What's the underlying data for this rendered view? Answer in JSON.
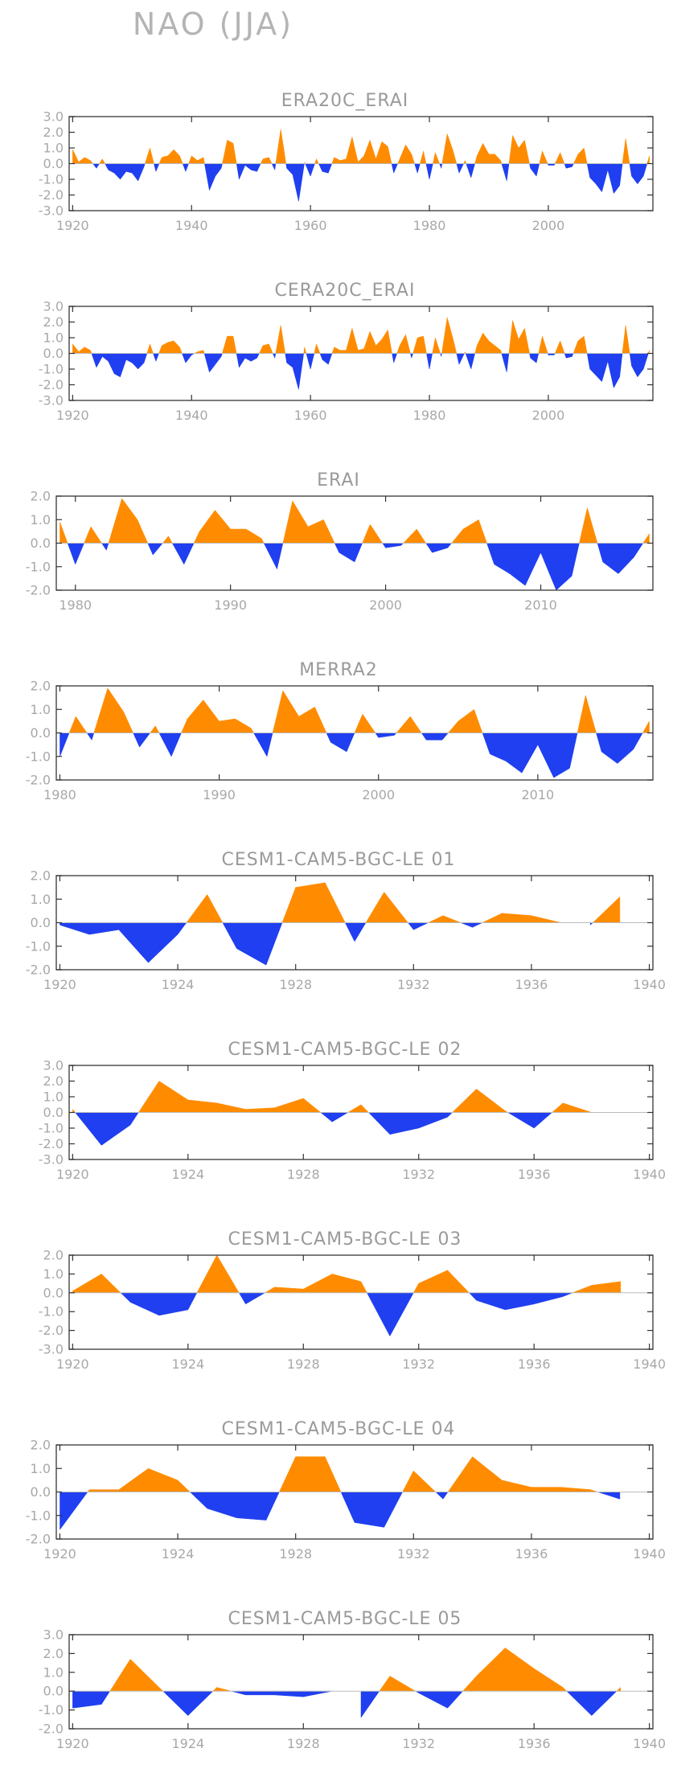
{
  "title": "NAO (JJA)",
  "colors": {
    "positive": "#ff8c00",
    "negative": "#1f3ff0",
    "axis_text": "#a8a8a8",
    "title_text": "#b4b4b4"
  },
  "chart_data": [
    {
      "type": "area",
      "title": "ERA20C_ERAI",
      "xlim": [
        1920,
        2017
      ],
      "ylim": [
        -3.0,
        3.0
      ],
      "y_ticks": [
        3.0,
        2.0,
        1.0,
        0.0,
        -1.0,
        -2.0,
        -3.0
      ],
      "y_tick_labels": [
        "3.0",
        "2.0",
        "1.0",
        "0.0",
        "-1.0",
        "-2.0",
        "-3.0"
      ],
      "x_ticks": [
        1920,
        1940,
        1960,
        1980,
        2000
      ],
      "x_tick_labels": [
        "1920",
        "1940",
        "1960",
        "1980",
        "2000"
      ],
      "x": [
        1920,
        1921,
        1922,
        1923,
        1924,
        1925,
        1926,
        1927,
        1928,
        1929,
        1930,
        1931,
        1932,
        1933,
        1934,
        1935,
        1936,
        1937,
        1938,
        1939,
        1940,
        1941,
        1942,
        1943,
        1944,
        1945,
        1946,
        1947,
        1948,
        1949,
        1950,
        1951,
        1952,
        1953,
        1954,
        1955,
        1956,
        1957,
        1958,
        1959,
        1960,
        1961,
        1962,
        1963,
        1964,
        1965,
        1966,
        1967,
        1968,
        1969,
        1970,
        1971,
        1972,
        1973,
        1974,
        1975,
        1976,
        1977,
        1978,
        1979,
        1980,
        1981,
        1982,
        1983,
        1984,
        1985,
        1986,
        1987,
        1988,
        1989,
        1990,
        1991,
        1992,
        1993,
        1994,
        1995,
        1996,
        1997,
        1998,
        1999,
        2000,
        2001,
        2002,
        2003,
        2004,
        2005,
        2006,
        2007,
        2008,
        2009,
        2010,
        2011,
        2012,
        2013,
        2014,
        2015,
        2016,
        2017
      ],
      "values": [
        0.9,
        0.1,
        0.4,
        0.2,
        -0.3,
        0.3,
        -0.4,
        -0.6,
        -1.0,
        -0.5,
        -0.6,
        -1.1,
        -0.2,
        1.0,
        -0.5,
        0.4,
        0.5,
        0.9,
        0.5,
        -0.5,
        0.5,
        0.2,
        0.4,
        -1.7,
        -0.8,
        -0.3,
        1.5,
        1.3,
        -1.0,
        -0.1,
        -0.4,
        -0.5,
        0.3,
        0.4,
        -0.4,
        2.2,
        -0.3,
        -0.7,
        -2.4,
        0.1,
        -0.8,
        0.3,
        -0.5,
        -0.6,
        0.4,
        0.2,
        0.3,
        1.7,
        0.1,
        0.5,
        1.5,
        0.3,
        1.4,
        1.1,
        -0.6,
        0.3,
        1.2,
        0.6,
        -0.6,
        0.8,
        -1.0,
        0.7,
        -0.3,
        1.9,
        0.8,
        -0.6,
        0.2,
        -0.9,
        0.5,
        1.3,
        0.6,
        0.6,
        0.2,
        -1.1,
        1.8,
        1.0,
        1.5,
        -0.3,
        -0.8,
        0.8,
        -0.1,
        -0.1,
        0.7,
        -0.3,
        -0.2,
        0.6,
        1.0,
        -0.9,
        -1.3,
        -1.8,
        -0.4,
        -1.9,
        -1.4,
        1.6,
        -0.8,
        -1.3,
        -0.8,
        0.5
      ]
    },
    {
      "type": "area",
      "title": "CERA20C_ERAI",
      "xlim": [
        1920,
        2017
      ],
      "ylim": [
        -3.0,
        3.0
      ],
      "y_ticks": [
        3.0,
        2.0,
        1.0,
        0.0,
        -1.0,
        -2.0,
        -3.0
      ],
      "y_tick_labels": [
        "3.0",
        "2.0",
        "1.0",
        "0.0",
        "-1.0",
        "-2.0",
        "-3.0"
      ],
      "x_ticks": [
        1920,
        1940,
        1960,
        1980,
        2000
      ],
      "x_tick_labels": [
        "1920",
        "1940",
        "1960",
        "1980",
        "2000"
      ],
      "x": [
        1920,
        1921,
        1922,
        1923,
        1924,
        1925,
        1926,
        1927,
        1928,
        1929,
        1930,
        1931,
        1932,
        1933,
        1934,
        1935,
        1936,
        1937,
        1938,
        1939,
        1940,
        1941,
        1942,
        1943,
        1944,
        1945,
        1946,
        1947,
        1948,
        1949,
        1950,
        1951,
        1952,
        1953,
        1954,
        1955,
        1956,
        1957,
        1958,
        1959,
        1960,
        1961,
        1962,
        1963,
        1964,
        1965,
        1966,
        1967,
        1968,
        1969,
        1970,
        1971,
        1972,
        1973,
        1974,
        1975,
        1976,
        1977,
        1978,
        1979,
        1980,
        1981,
        1982,
        1983,
        1984,
        1985,
        1986,
        1987,
        1988,
        1989,
        1990,
        1991,
        1992,
        1993,
        1994,
        1995,
        1996,
        1997,
        1998,
        1999,
        2000,
        2001,
        2002,
        2003,
        2004,
        2005,
        2006,
        2007,
        2008,
        2009,
        2010,
        2011,
        2012,
        2013,
        2014,
        2015,
        2016,
        2017
      ],
      "values": [
        0.6,
        0.1,
        0.4,
        0.2,
        -0.9,
        -0.2,
        -0.5,
        -1.3,
        -1.5,
        -0.4,
        -0.6,
        -1.0,
        -0.6,
        0.6,
        -0.5,
        0.5,
        0.7,
        0.8,
        0.4,
        -0.6,
        -0.1,
        0.1,
        0.2,
        -1.2,
        -0.7,
        -0.2,
        1.1,
        1.1,
        -0.9,
        -0.3,
        -0.5,
        -0.3,
        0.5,
        0.6,
        -0.3,
        1.8,
        -0.6,
        -0.9,
        -2.3,
        0.4,
        -1.0,
        0.6,
        -0.4,
        -0.7,
        0.4,
        0.2,
        0.2,
        1.6,
        0.2,
        0.3,
        1.4,
        0.5,
        0.9,
        1.5,
        -0.6,
        0.5,
        1.2,
        -0.3,
        1.0,
        1.1,
        -1.0,
        1.0,
        -0.2,
        2.3,
        0.9,
        -0.7,
        0.1,
        -1.0,
        0.5,
        1.3,
        0.8,
        0.5,
        0.2,
        -1.2,
        2.1,
        0.9,
        1.6,
        -0.3,
        -0.6,
        1.1,
        -0.1,
        -0.1,
        0.8,
        -0.3,
        -0.2,
        0.8,
        1.1,
        -1.0,
        -1.4,
        -1.8,
        -0.5,
        -2.2,
        -1.5,
        1.8,
        -0.8,
        -1.5,
        -1.0,
        0.2
      ]
    },
    {
      "type": "area",
      "title": "ERAI",
      "xlim": [
        1979,
        2017
      ],
      "ylim": [
        -2.0,
        2.0
      ],
      "y_ticks": [
        2.0,
        1.0,
        0.0,
        -1.0,
        -2.0
      ],
      "y_tick_labels": [
        "2.0",
        "1.0",
        "0.0",
        "-1.0",
        "-2.0"
      ],
      "x_ticks": [
        1980,
        1990,
        2000,
        2010
      ],
      "x_tick_labels": [
        "1980",
        "1990",
        "2000",
        "2010"
      ],
      "x": [
        1979,
        1980,
        1981,
        1982,
        1983,
        1984,
        1985,
        1986,
        1987,
        1988,
        1989,
        1990,
        1991,
        1992,
        1993,
        1994,
        1995,
        1996,
        1997,
        1998,
        1999,
        2000,
        2001,
        2002,
        2003,
        2004,
        2005,
        2006,
        2007,
        2008,
        2009,
        2010,
        2011,
        2012,
        2013,
        2014,
        2015,
        2016,
        2017
      ],
      "values": [
        0.9,
        -0.9,
        0.7,
        -0.3,
        1.9,
        1.0,
        -0.5,
        0.3,
        -0.9,
        0.5,
        1.4,
        0.6,
        0.6,
        0.2,
        -1.1,
        1.8,
        0.7,
        1.0,
        -0.4,
        -0.8,
        0.8,
        -0.2,
        -0.1,
        0.6,
        -0.4,
        -0.2,
        0.6,
        1.0,
        -0.9,
        -1.3,
        -1.8,
        -0.4,
        -2.0,
        -1.4,
        1.5,
        -0.8,
        -1.3,
        -0.6,
        0.4
      ]
    },
    {
      "type": "area",
      "title": "MERRA2",
      "xlim": [
        1980,
        2017
      ],
      "ylim": [
        -2.0,
        2.0
      ],
      "y_ticks": [
        2.0,
        1.0,
        0.0,
        -1.0,
        -2.0
      ],
      "y_tick_labels": [
        "2.0",
        "1.0",
        "0.0",
        "-1.0",
        "-2.0"
      ],
      "x_ticks": [
        1980,
        1990,
        2000,
        2010
      ],
      "x_tick_labels": [
        "1980",
        "1990",
        "2000",
        "2010"
      ],
      "x": [
        1980,
        1981,
        1982,
        1983,
        1984,
        1985,
        1986,
        1987,
        1988,
        1989,
        1990,
        1991,
        1992,
        1993,
        1994,
        1995,
        1996,
        1997,
        1998,
        1999,
        2000,
        2001,
        2002,
        2003,
        2004,
        2005,
        2006,
        2007,
        2008,
        2009,
        2010,
        2011,
        2012,
        2013,
        2014,
        2015,
        2016,
        2017
      ],
      "values": [
        -1.0,
        0.7,
        -0.3,
        1.9,
        0.9,
        -0.6,
        0.3,
        -1.0,
        0.6,
        1.4,
        0.5,
        0.6,
        0.2,
        -1.0,
        1.8,
        0.7,
        1.1,
        -0.4,
        -0.8,
        0.8,
        -0.2,
        -0.1,
        0.7,
        -0.3,
        -0.3,
        0.5,
        1.0,
        -0.9,
        -1.2,
        -1.7,
        -0.5,
        -1.9,
        -1.5,
        1.6,
        -0.8,
        -1.3,
        -0.7,
        0.5
      ]
    },
    {
      "type": "area",
      "title": "CESM1-CAM5-BGC-LE 01",
      "xlim": [
        1920,
        1940
      ],
      "ylim": [
        -2.0,
        2.0
      ],
      "y_ticks": [
        2.0,
        1.0,
        0.0,
        -1.0,
        -2.0
      ],
      "y_tick_labels": [
        "2.0",
        "1.0",
        "0.0",
        "-1.0",
        "-2.0"
      ],
      "x_ticks": [
        1920,
        1924,
        1928,
        1932,
        1936,
        1940
      ],
      "x_tick_labels": [
        "1920",
        "1924",
        "1928",
        "1932",
        "1936",
        "1940"
      ],
      "x": [
        1920,
        1921,
        1922,
        1923,
        1924,
        1925,
        1926,
        1927,
        1928,
        1929,
        1930,
        1931,
        1932,
        1933,
        1934,
        1935,
        1936,
        1937,
        1938,
        1939
      ],
      "values": [
        -0.1,
        -0.5,
        -0.3,
        -1.7,
        -0.5,
        1.2,
        -1.1,
        -1.8,
        1.5,
        1.7,
        -0.8,
        1.3,
        -0.3,
        0.3,
        -0.2,
        0.4,
        0.3,
        0.0,
        -0.1,
        1.1
      ]
    },
    {
      "type": "area",
      "title": "CESM1-CAM5-BGC-LE 02",
      "xlim": [
        1920,
        1940
      ],
      "ylim": [
        -3.0,
        3.0
      ],
      "y_ticks": [
        3.0,
        2.0,
        1.0,
        0.0,
        -1.0,
        -2.0,
        -3.0
      ],
      "y_tick_labels": [
        "3.0",
        "2.0",
        "1.0",
        "0.0",
        "-1.0",
        "-2.0",
        "-3.0"
      ],
      "x_ticks": [
        1920,
        1924,
        1928,
        1932,
        1936,
        1940
      ],
      "x_tick_labels": [
        "1920",
        "1924",
        "1928",
        "1932",
        "1936",
        "1940"
      ],
      "x": [
        1920,
        1921,
        1922,
        1923,
        1924,
        1925,
        1926,
        1927,
        1928,
        1929,
        1930,
        1931,
        1932,
        1933,
        1934,
        1935,
        1936,
        1937,
        1938,
        1939
      ],
      "values": [
        0.2,
        -2.1,
        -0.8,
        2.0,
        0.8,
        0.6,
        0.2,
        0.3,
        0.9,
        -0.6,
        0.5,
        -1.4,
        -1.0,
        -0.3,
        1.5,
        0.1,
        -1.0,
        0.6,
        0.0,
        0.0
      ]
    },
    {
      "type": "area",
      "title": "CESM1-CAM5-BGC-LE 03",
      "xlim": [
        1920,
        1940
      ],
      "ylim": [
        -3.0,
        2.0
      ],
      "y_ticks": [
        2.0,
        1.0,
        0.0,
        -1.0,
        -2.0,
        -3.0
      ],
      "y_tick_labels": [
        "2.0",
        "1.0",
        "0.0",
        "-1.0",
        "-2.0",
        "-3.0"
      ],
      "x_ticks": [
        1920,
        1924,
        1928,
        1932,
        1936,
        1940
      ],
      "x_tick_labels": [
        "1920",
        "1924",
        "1928",
        "1932",
        "1936",
        "1940"
      ],
      "x": [
        1920,
        1921,
        1922,
        1923,
        1924,
        1925,
        1926,
        1927,
        1928,
        1929,
        1930,
        1931,
        1932,
        1933,
        1934,
        1935,
        1936,
        1937,
        1938,
        1939
      ],
      "values": [
        0.1,
        1.0,
        -0.5,
        -1.2,
        -0.9,
        2.0,
        -0.6,
        0.3,
        0.2,
        1.0,
        0.6,
        -2.3,
        0.5,
        1.2,
        -0.4,
        -0.9,
        -0.6,
        -0.2,
        0.4,
        0.6
      ]
    },
    {
      "type": "area",
      "title": "CESM1-CAM5-BGC-LE 04",
      "xlim": [
        1920,
        1940
      ],
      "ylim": [
        -2.0,
        2.0
      ],
      "y_ticks": [
        2.0,
        1.0,
        0.0,
        -1.0,
        -2.0
      ],
      "y_tick_labels": [
        "2.0",
        "1.0",
        "0.0",
        "-1.0",
        "-2.0"
      ],
      "x_ticks": [
        1920,
        1924,
        1928,
        1932,
        1936,
        1940
      ],
      "x_tick_labels": [
        "1920",
        "1924",
        "1928",
        "1932",
        "1936",
        "1940"
      ],
      "x": [
        1920,
        1921,
        1922,
        1923,
        1924,
        1925,
        1926,
        1927,
        1928,
        1929,
        1930,
        1931,
        1932,
        1933,
        1934,
        1935,
        1936,
        1937,
        1938,
        1939
      ],
      "values": [
        -1.6,
        0.1,
        0.1,
        1.0,
        0.5,
        -0.7,
        -1.1,
        -1.2,
        1.5,
        1.5,
        -1.3,
        -1.5,
        0.9,
        -0.3,
        1.5,
        0.5,
        0.2,
        0.2,
        0.1,
        -0.3
      ]
    },
    {
      "type": "area",
      "title": "CESM1-CAM5-BGC-LE 05",
      "xlim": [
        1920,
        1940
      ],
      "ylim": [
        -2.0,
        3.0
      ],
      "y_ticks": [
        3.0,
        2.0,
        1.0,
        0.0,
        -1.0,
        -2.0
      ],
      "y_tick_labels": [
        "3.0",
        "2.0",
        "1.0",
        "0.0",
        "-1.0",
        "-2.0"
      ],
      "x_ticks": [
        1920,
        1924,
        1928,
        1932,
        1936,
        1940
      ],
      "x_tick_labels": [
        "1920",
        "1924",
        "1928",
        "1932",
        "1936",
        "1940"
      ],
      "x": [
        1920,
        1921,
        1922,
        1923,
        1924,
        1925,
        1926,
        1927,
        1928,
        1929,
        1930,
        1931,
        1932,
        1933,
        1934,
        1935,
        1936,
        1937,
        1938,
        1939
      ],
      "values": [
        -0.9,
        -0.7,
        1.7,
        0.2,
        -1.3,
        0.2,
        -0.2,
        -0.2,
        -0.3,
        0.0,
        -1.4,
        0.8,
        -0.1,
        -0.9,
        0.8,
        2.3,
        1.2,
        0.2,
        -1.3,
        0.2
      ]
    }
  ]
}
